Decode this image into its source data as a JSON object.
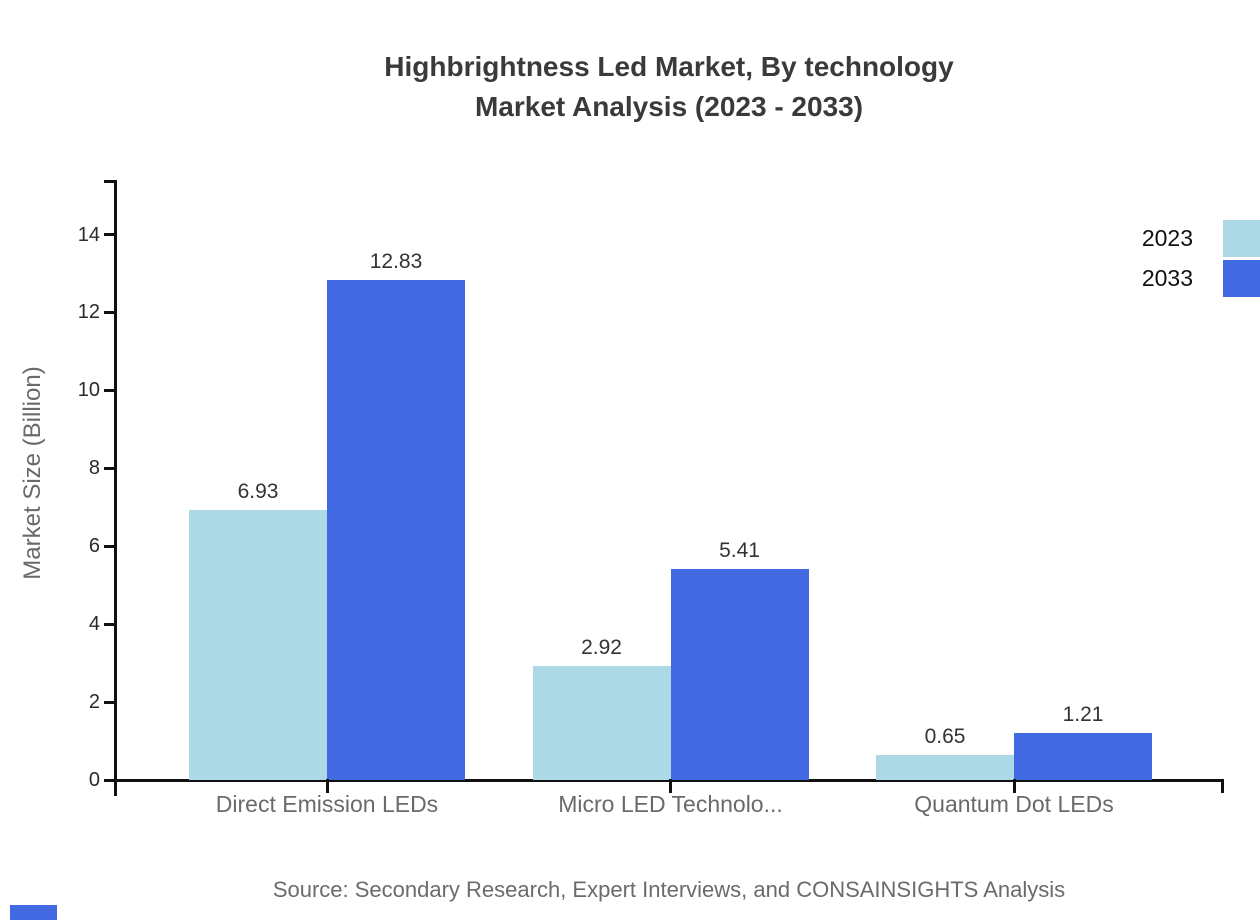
{
  "title": {
    "line1": "Highbrightness Led Market, By technology",
    "line2": "Market Analysis (2023 - 2033)"
  },
  "source_note": "Source: Secondary Research, Expert Interviews, and CONSAINSIGHTS Analysis",
  "chart_data": {
    "type": "bar",
    "title": "Highbrightness Led Market, By technology Market Analysis (2023 - 2033)",
    "categories": [
      "Direct Emission LEDs",
      "Micro LED Technolo...",
      "Quantum Dot LEDs"
    ],
    "series": [
      {
        "name": "2023",
        "color": "#ADD8E6",
        "values": [
          6.93,
          2.92,
          0.65
        ]
      },
      {
        "name": "2033",
        "color": "#4169E1",
        "values": [
          12.83,
          5.41,
          1.21
        ]
      }
    ],
    "xlabel": "",
    "ylabel": "Market Size (Billion)",
    "ylim": [
      0,
      15.4
    ],
    "yticks": [
      0,
      2,
      4,
      6,
      8,
      10,
      12,
      14
    ],
    "grid": false,
    "legend_position": "top-right",
    "value_labels": true,
    "value_label_decimals": 2
  },
  "colors": {
    "series_2023": "#ADD8E6",
    "series_2033": "#4169E1",
    "axis_line": "#111111",
    "title_text": "#3a3a3a",
    "category_text": "#6a6a6a",
    "tick_text": "#2b2b2b",
    "value_text": "#333333",
    "legend_text": "#111111",
    "brand_mark": "#4169E1"
  }
}
